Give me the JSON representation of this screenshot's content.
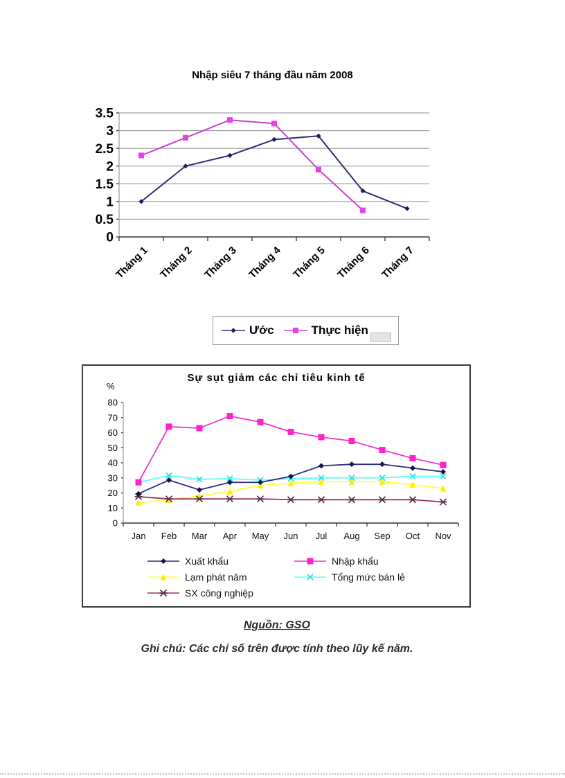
{
  "page": {
    "background": "#ffffff"
  },
  "chart_data": [
    {
      "id": "trade-deficit",
      "type": "line",
      "title": "Nhập siêu 7 tháng đầu năm 2008",
      "categories": [
        "Tháng 1",
        "Tháng 2",
        "Tháng 3",
        "Tháng 4",
        "Tháng 5",
        "Tháng 6",
        "Tháng 7"
      ],
      "series": [
        {
          "name": "Ước",
          "color": "#2b2b7a",
          "marker": "diamond",
          "marker_color": "#1c1c60",
          "values": [
            1.0,
            2.0,
            2.3,
            2.75,
            2.85,
            1.3,
            0.8
          ]
        },
        {
          "name": "Thực hiện",
          "color": "#cc3fcc",
          "marker": "square",
          "marker_color": "#e643e6",
          "values": [
            2.3,
            2.8,
            3.3,
            3.2,
            1.9,
            0.75,
            null
          ]
        }
      ],
      "ylim": [
        0,
        3.5
      ],
      "ytick_step": 0.5,
      "grid": "horizontal",
      "legend_position": "bottom"
    },
    {
      "id": "indicators-decline",
      "type": "line",
      "title": "Sự sụt giảm các chỉ tiêu kinh tế",
      "unit_label": "%",
      "categories": [
        "Jan",
        "Feb",
        "Mar",
        "Apr",
        "May",
        "Jun",
        "Jul",
        "Aug",
        "Sep",
        "Oct",
        "Nov"
      ],
      "series": [
        {
          "name": "Xuất khẩu",
          "color": "#2b2b80",
          "marker": "diamond",
          "marker_color": "#14144d",
          "values": [
            19.5,
            28.5,
            22,
            27,
            27,
            31,
            38,
            39,
            39,
            36.5,
            34
          ]
        },
        {
          "name": "Nhập khẩu",
          "color": "#ee33cc",
          "marker": "square",
          "marker_color": "#ff22cc",
          "values": [
            27,
            64,
            63,
            71,
            67,
            60.5,
            57,
            54.5,
            48.5,
            43,
            38.5
          ]
        },
        {
          "name": "Lạm phát năm",
          "color": "#ffff33",
          "marker": "triangle",
          "marker_color": "#ffee00",
          "values": [
            13.5,
            15.5,
            18,
            21,
            25,
            26.5,
            27.5,
            27.5,
            27.5,
            25.5,
            23
          ]
        },
        {
          "name": "Tổng mức bán lẻ",
          "color": "#55ffff",
          "marker": "x",
          "marker_color": "#2adddd",
          "values": [
            27,
            31.5,
            29,
            29.5,
            28.5,
            29.5,
            30,
            30,
            30,
            31,
            31
          ]
        },
        {
          "name": "SX công nghiệp",
          "color": "#993366",
          "marker": "star",
          "marker_color": "#5c2a4f",
          "values": [
            17.5,
            16,
            16,
            16,
            16,
            15.5,
            15.5,
            15.5,
            15.5,
            15.5,
            14
          ]
        }
      ],
      "ylim": [
        0,
        80
      ],
      "ytick_step": 10,
      "grid": "none",
      "legend_position": "bottom-two-column"
    }
  ],
  "source_note": "Nguồn: GSO",
  "footnote": "Ghi chú: Các chỉ số trên được tính theo lũy kế năm."
}
